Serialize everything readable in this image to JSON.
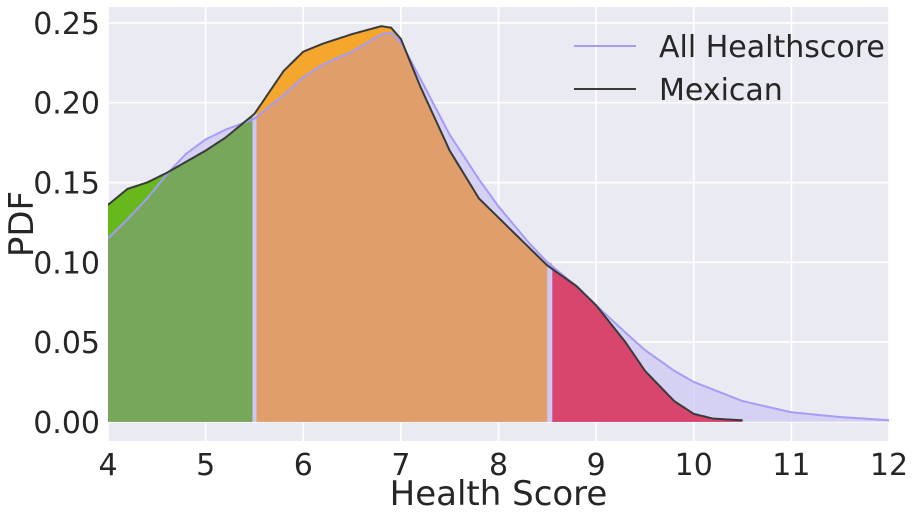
{
  "chart_data": {
    "type": "area",
    "title": "",
    "xlabel": "Health Score",
    "ylabel": "PDF",
    "xlim": [
      4,
      12
    ],
    "ylim": [
      -0.012,
      0.26
    ],
    "xticks": [
      4,
      5,
      6,
      7,
      8,
      9,
      10,
      11,
      12
    ],
    "yticks": [
      0.0,
      0.05,
      0.1,
      0.15,
      0.2,
      0.25
    ],
    "ytick_labels": [
      "0.00",
      "0.05",
      "0.10",
      "0.15",
      "0.20",
      "0.25"
    ],
    "grid": true,
    "legend_position": "top-right",
    "colors": {
      "background": "#eaeaf2",
      "grid": "#ffffff",
      "all_line": "#a59cf7",
      "all_fill": "#cdc8f3",
      "mexican_line": "#3a3a3a",
      "band_low_mexican": "#66b81c",
      "band_low_overlap": "#76a75a",
      "band_mid_mexican": "#f5a62c",
      "band_mid_overlap": "#e09e6a",
      "band_high": "#d8466e",
      "separator": "#cdc8f3"
    },
    "bands": [
      {
        "from": 4.0,
        "to": 5.48
      },
      {
        "from": 5.52,
        "to": 8.5
      },
      {
        "from": 8.55,
        "to": 10.5
      }
    ],
    "series": [
      {
        "name": "All Healthscore",
        "x": [
          4.0,
          4.2,
          4.4,
          4.6,
          4.8,
          5.0,
          5.2,
          5.5,
          5.8,
          6.0,
          6.2,
          6.5,
          6.8,
          6.9,
          7.0,
          7.2,
          7.5,
          7.8,
          8.0,
          8.3,
          8.5,
          8.8,
          9.0,
          9.3,
          9.5,
          9.8,
          10.0,
          10.5,
          11.0,
          11.5,
          12.0
        ],
        "values": [
          0.115,
          0.127,
          0.14,
          0.155,
          0.168,
          0.177,
          0.183,
          0.19,
          0.205,
          0.216,
          0.224,
          0.232,
          0.243,
          0.244,
          0.238,
          0.215,
          0.18,
          0.152,
          0.135,
          0.113,
          0.1,
          0.085,
          0.073,
          0.056,
          0.045,
          0.032,
          0.025,
          0.013,
          0.006,
          0.003,
          0.001
        ]
      },
      {
        "name": "Mexican",
        "x": [
          4.0,
          4.2,
          4.4,
          4.6,
          4.8,
          5.0,
          5.2,
          5.5,
          5.8,
          6.0,
          6.2,
          6.5,
          6.8,
          6.9,
          7.0,
          7.2,
          7.5,
          7.8,
          8.0,
          8.3,
          8.5,
          8.8,
          9.0,
          9.3,
          9.5,
          9.8,
          10.0,
          10.2,
          10.5
        ],
        "values": [
          0.136,
          0.146,
          0.15,
          0.156,
          0.163,
          0.17,
          0.178,
          0.193,
          0.22,
          0.232,
          0.237,
          0.243,
          0.248,
          0.247,
          0.24,
          0.21,
          0.17,
          0.14,
          0.128,
          0.11,
          0.098,
          0.085,
          0.073,
          0.05,
          0.032,
          0.013,
          0.005,
          0.002,
          0.001
        ]
      }
    ]
  }
}
